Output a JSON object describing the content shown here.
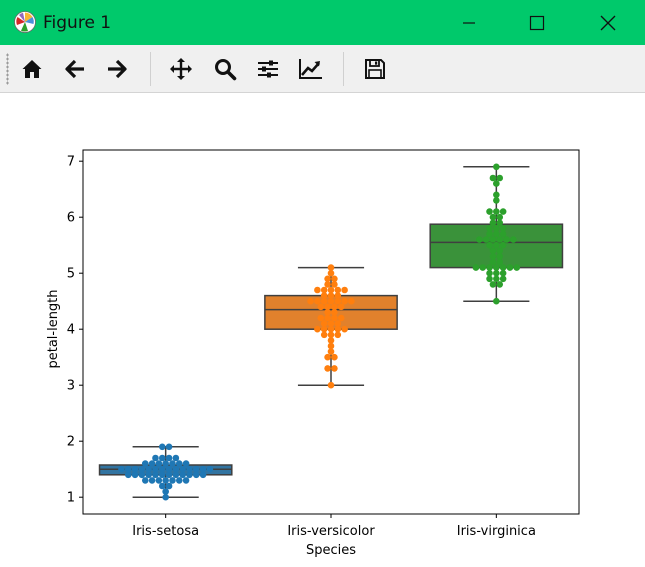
{
  "window": {
    "title": "Figure 1",
    "accent_color": "#00c96b"
  },
  "toolbar": {
    "buttons": [
      {
        "name": "home-icon"
      },
      {
        "name": "back-arrow-icon"
      },
      {
        "name": "forward-arrow-icon"
      },
      {
        "name": "pan-move-icon"
      },
      {
        "name": "zoom-magnifier-icon"
      },
      {
        "name": "configure-subplots-icon"
      },
      {
        "name": "edit-axis-curve-icon"
      },
      {
        "name": "save-floppy-icon"
      }
    ]
  },
  "chart_data": {
    "type": "box",
    "overlay": "swarm",
    "title": "",
    "xlabel": "Species",
    "ylabel": "petal-length",
    "categories": [
      "Iris-setosa",
      "Iris-versicolor",
      "Iris-virginica"
    ],
    "ylim": [
      0.7,
      7.2
    ],
    "yticks": [
      1,
      2,
      3,
      4,
      5,
      6,
      7
    ],
    "grid": false,
    "legend": "none",
    "colors": [
      "#1f77b4",
      "#ff7f0e",
      "#2ca02c"
    ],
    "box_colors": [
      "#3274a1",
      "#e1812c",
      "#3a923a"
    ],
    "boxes": [
      {
        "min": 1.0,
        "q1": 1.4,
        "median": 1.5,
        "q3": 1.575,
        "max": 1.9
      },
      {
        "min": 3.0,
        "q1": 4.0,
        "median": 4.35,
        "q3": 4.6,
        "max": 5.1
      },
      {
        "min": 4.5,
        "q1": 5.1,
        "median": 5.55,
        "q3": 5.875,
        "max": 6.9
      }
    ],
    "points": [
      [
        1.4,
        1.4,
        1.3,
        1.5,
        1.4,
        1.7,
        1.4,
        1.5,
        1.4,
        1.5,
        1.5,
        1.6,
        1.4,
        1.1,
        1.2,
        1.5,
        1.3,
        1.4,
        1.7,
        1.5,
        1.7,
        1.5,
        1.0,
        1.7,
        1.9,
        1.6,
        1.6,
        1.5,
        1.4,
        1.6,
        1.6,
        1.5,
        1.5,
        1.4,
        1.5,
        1.2,
        1.3,
        1.5,
        1.3,
        1.5,
        1.3,
        1.3,
        1.3,
        1.6,
        1.9,
        1.4,
        1.6,
        1.4,
        1.5,
        1.4
      ],
      [
        4.7,
        4.5,
        4.9,
        4.0,
        4.6,
        4.5,
        4.7,
        3.3,
        4.6,
        3.9,
        3.5,
        4.2,
        4.0,
        4.7,
        3.6,
        4.4,
        4.5,
        4.1,
        4.5,
        3.9,
        4.8,
        4.0,
        4.9,
        4.7,
        4.3,
        4.4,
        4.8,
        5.0,
        4.5,
        3.5,
        3.8,
        3.7,
        3.9,
        5.1,
        4.5,
        4.5,
        4.7,
        4.4,
        4.1,
        4.0,
        4.4,
        4.6,
        4.0,
        3.3,
        4.2,
        4.2,
        4.2,
        4.3,
        3.0,
        4.1
      ],
      [
        6.0,
        5.1,
        5.9,
        5.6,
        5.8,
        6.6,
        4.5,
        6.3,
        5.8,
        6.1,
        5.1,
        5.3,
        5.5,
        5.0,
        5.1,
        5.3,
        5.5,
        6.7,
        6.9,
        5.0,
        5.7,
        4.9,
        6.7,
        4.9,
        5.7,
        6.0,
        4.8,
        4.9,
        5.6,
        5.8,
        6.1,
        6.4,
        5.6,
        5.1,
        5.6,
        6.1,
        5.6,
        5.5,
        4.8,
        5.4,
        5.6,
        5.1,
        5.1,
        5.9,
        5.7,
        5.2,
        5.0,
        5.2,
        5.4,
        5.1
      ]
    ]
  }
}
